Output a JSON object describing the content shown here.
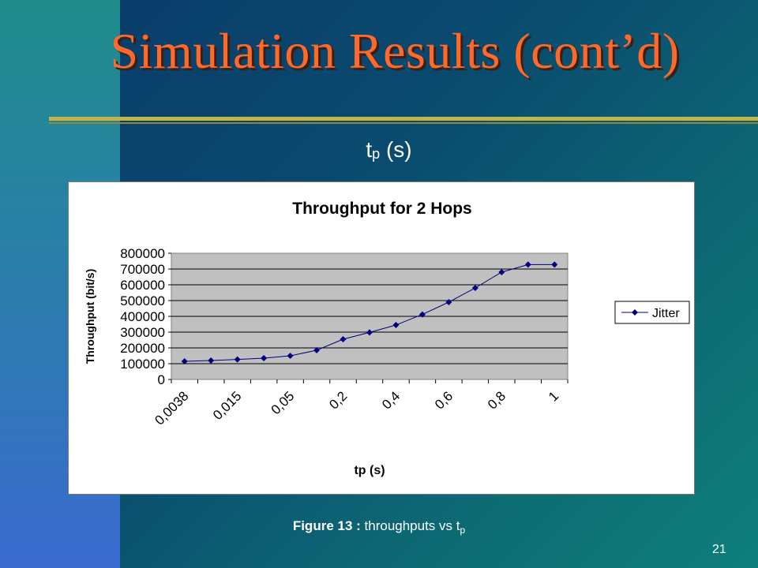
{
  "slide": {
    "title": "Simulation Results (cont’d)",
    "subhead_main": "t",
    "subhead_sub": "p",
    "subhead_unit": " (s)",
    "caption_bold": "Figure 13 :",
    "caption_text": " throughputs vs t",
    "caption_sub": "p",
    "page_number": "21"
  },
  "colors": {
    "title": "#ff6a2a",
    "plot_area": "#c0c0c0",
    "series": "#000080",
    "rule": "#c2b34a"
  },
  "chart_data": {
    "type": "line",
    "title": "Throughput for 2 Hops",
    "xlabel": "tp (s)",
    "ylabel": "Throughput (bit/s)",
    "ylim": [
      0,
      800000
    ],
    "yticks": [
      0,
      100000,
      200000,
      300000,
      400000,
      500000,
      600000,
      700000,
      800000
    ],
    "xtick_labels": [
      "0,0038",
      "0,015",
      "0,05",
      "0,2",
      "0,4",
      "0,6",
      "0,8",
      "1"
    ],
    "grid": true,
    "legend_position": "right",
    "series": [
      {
        "name": "Jitter",
        "values": [
          115000,
          120000,
          127000,
          135000,
          150000,
          185000,
          255000,
          298000,
          345000,
          412000,
          490000,
          580000,
          680000,
          728000,
          728000
        ]
      }
    ]
  }
}
